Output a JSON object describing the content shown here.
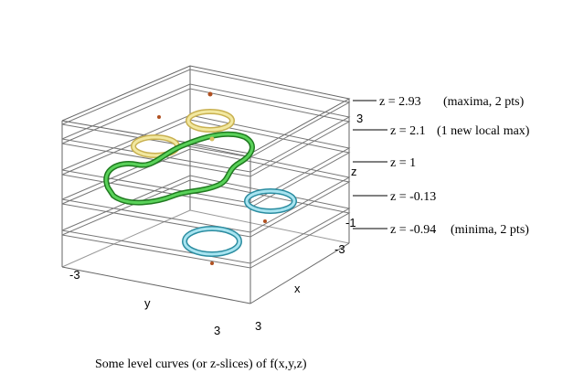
{
  "figure": {
    "caption": "Some level curves (or z-slices) of  f(x,y,z)",
    "slice_labels": [
      {
        "eq": "z = 2.93",
        "note": "(maxima, 2 pts)"
      },
      {
        "eq": "z = 2.1",
        "note": "(1 new local max)"
      },
      {
        "eq": "z = 1",
        "note": ""
      },
      {
        "eq": "z = -0.13",
        "note": ""
      },
      {
        "eq": "z = -0.94",
        "note": "(minima, 2 pts)"
      }
    ],
    "axes": {
      "z_label": "z",
      "z_top_tick": "3",
      "z_bottom_tick": "-1",
      "x_label": "x",
      "x_tick_neg": "-3",
      "x_tick_pos": "3",
      "y_label": "y",
      "y_tick_neg": "-3",
      "y_tick_pos": "3"
    },
    "colors": {
      "frame": "#666666",
      "yellow_curve": "#e8d878",
      "green_curve": "#3cb83a",
      "cyan_curve": "#60c4d8",
      "marker": "#b05020"
    }
  }
}
